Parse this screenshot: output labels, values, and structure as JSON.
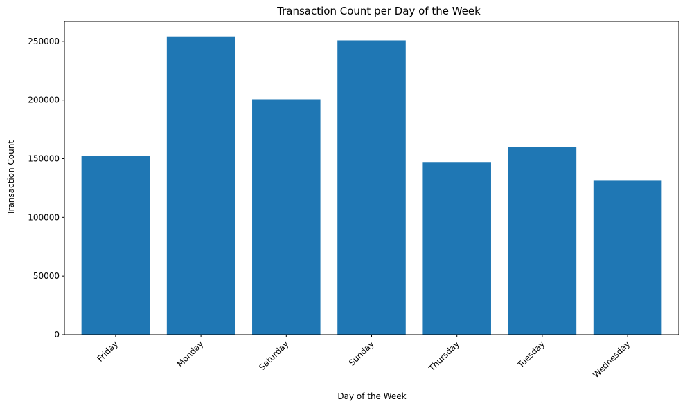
{
  "chart_data": {
    "type": "bar",
    "title": "Transaction Count per Day of the Week",
    "xlabel": "Day of the Week",
    "ylabel": "Transaction Count",
    "categories": [
      "Friday",
      "Monday",
      "Saturday",
      "Sunday",
      "Thursday",
      "Tuesday",
      "Wednesday"
    ],
    "values": [
      152500,
      254200,
      200700,
      250800,
      147200,
      160200,
      131200
    ],
    "ylim": [
      0,
      267000
    ],
    "yticks": [
      0,
      50000,
      100000,
      150000,
      200000,
      250000
    ],
    "bar_color": "#1f77b4",
    "grid": false,
    "legend": "none"
  }
}
